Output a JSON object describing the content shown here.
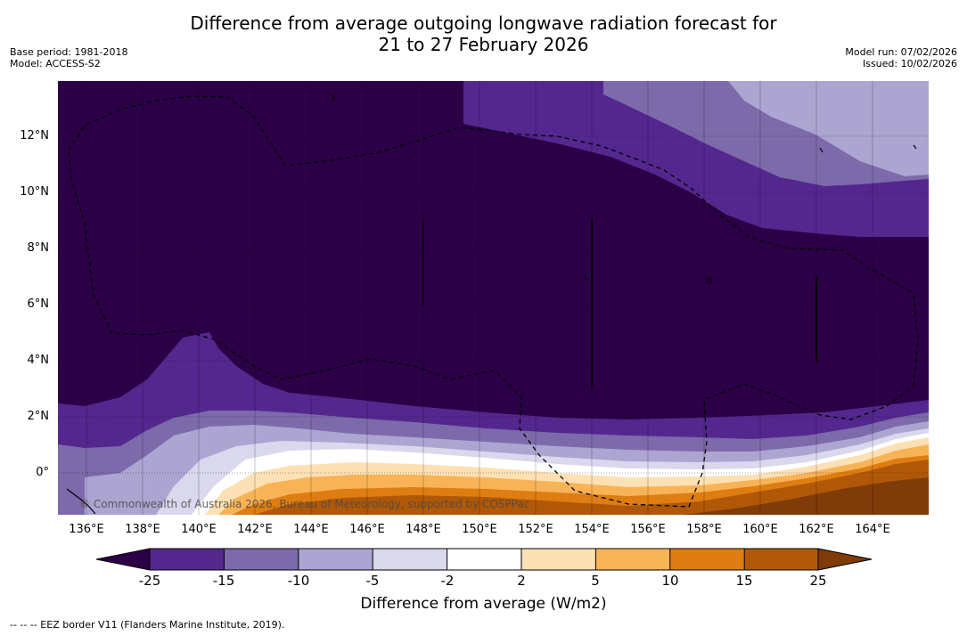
{
  "title_line1": "Difference from average outgoing longwave radiation forecast for",
  "title_line2": "21 to 27 February 2026",
  "meta_left": [
    "Base period: 1981-2018",
    "Model: ACCESS-S2"
  ],
  "meta_right": [
    "Model run: 07/02/2026",
    "Issued: 10/02/2026"
  ],
  "lat_labels": [
    "12°N",
    "10°N",
    "8°N",
    "6°N",
    "4°N",
    "2°N",
    "0°"
  ],
  "lon_labels": [
    "136°E",
    "138°E",
    "140°E",
    "142°E",
    "144°E",
    "146°E",
    "148°E",
    "150°E",
    "152°E",
    "154°E",
    "156°E",
    "158°E",
    "160°E",
    "162°E",
    "164°E"
  ],
  "colorbar": {
    "boundaries": [
      "-25",
      "-15",
      "-10",
      "-5",
      "-2",
      "2",
      "5",
      "10",
      "15",
      "25"
    ],
    "colors": [
      "#2c0047",
      "#54278f",
      "#7c6aab",
      "#aca5d1",
      "#d9d8ec",
      "#ffffff",
      "#fde0b4",
      "#f8b357",
      "#de7d12",
      "#b05807",
      "#7f3b08"
    ],
    "label": "Difference from average (W/m2)"
  },
  "copyright": "© Commonwealth of Australia 2026, Bureau of Meteorology, supported by COSPPac",
  "footnote": "--  --  -- EEZ border V11 (Flanders Marine Institute, 2019)."
}
